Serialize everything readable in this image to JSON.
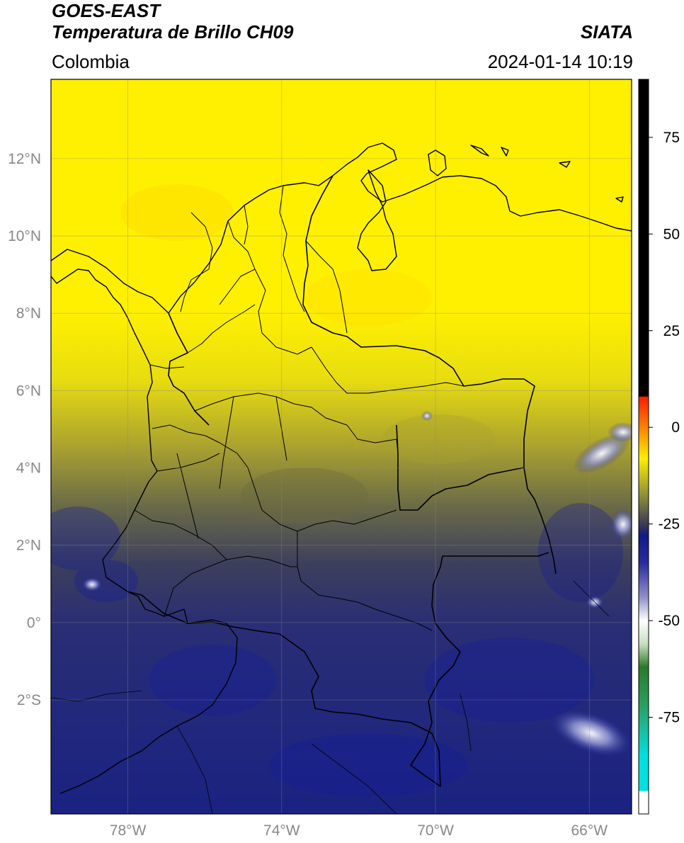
{
  "header": {
    "satellite": "GOES-EAST",
    "product": "Temperatura de Brillo CH09",
    "agency": "SIATA",
    "region": "Colombia",
    "timestamp": "2024-01-14 10:19"
  },
  "map": {
    "lon_range": [
      -80.0,
      -64.9
    ],
    "lat_range": [
      -4.95,
      14.05
    ],
    "lat_ticks": [
      {
        "value": 12,
        "label": "12°N"
      },
      {
        "value": 10,
        "label": "10°N"
      },
      {
        "value": 8,
        "label": "8°N"
      },
      {
        "value": 6,
        "label": "6°N"
      },
      {
        "value": 4,
        "label": "4°N"
      },
      {
        "value": 2,
        "label": "2°N"
      },
      {
        "value": 0,
        "label": "0°"
      },
      {
        "value": -2,
        "label": "2°S"
      }
    ],
    "lon_ticks": [
      {
        "value": -78,
        "label": "78°W"
      },
      {
        "value": -74,
        "label": "74°W"
      },
      {
        "value": -70,
        "label": "70°W"
      },
      {
        "value": -66,
        "label": "66°W"
      }
    ],
    "grid": true,
    "background_gradient": [
      {
        "lat": 14.0,
        "color": "#ffef00"
      },
      {
        "lat": 8.0,
        "color": "#fff000"
      },
      {
        "lat": 6.3,
        "color": "#e8dd10"
      },
      {
        "lat": 4.5,
        "color": "#a8a030"
      },
      {
        "lat": 3.0,
        "color": "#6a6a48"
      },
      {
        "lat": 1.5,
        "color": "#3c3f5c"
      },
      {
        "lat": 0.0,
        "color": "#2a2e74"
      },
      {
        "lat": -5.0,
        "color": "#1a2282"
      }
    ]
  },
  "colorbar": {
    "range": [
      -100,
      90
    ],
    "ticks": [
      {
        "value": 75,
        "label": "75"
      },
      {
        "value": 50,
        "label": "50"
      },
      {
        "value": 25,
        "label": "25"
      },
      {
        "value": 0,
        "label": "0"
      },
      {
        "value": -25,
        "label": "-25"
      },
      {
        "value": -50,
        "label": "-50"
      },
      {
        "value": -75,
        "label": "-75"
      }
    ],
    "stops": [
      {
        "value": 90,
        "color": "#000000"
      },
      {
        "value": 8,
        "color": "#000000"
      },
      {
        "value": 7.9,
        "color": "#ff1a00"
      },
      {
        "value": 0,
        "color": "#ff8000"
      },
      {
        "value": -8,
        "color": "#ffee00"
      },
      {
        "value": -18,
        "color": "#8a8a3a"
      },
      {
        "value": -26,
        "color": "#30305a"
      },
      {
        "value": -28,
        "color": "#101a8a"
      },
      {
        "value": -35,
        "color": "#2a2aa0"
      },
      {
        "value": -44,
        "color": "#9090c8"
      },
      {
        "value": -50,
        "color": "#ffffff"
      },
      {
        "value": -56,
        "color": "#c8e0c0"
      },
      {
        "value": -62,
        "color": "#2a7a2a"
      },
      {
        "value": -72,
        "color": "#2aa060"
      },
      {
        "value": -85,
        "color": "#00e0e0"
      },
      {
        "value": -94,
        "color": "#00e0e0"
      },
      {
        "value": -94.1,
        "color": "#ffffff"
      },
      {
        "value": -100,
        "color": "#ffffff"
      }
    ]
  }
}
